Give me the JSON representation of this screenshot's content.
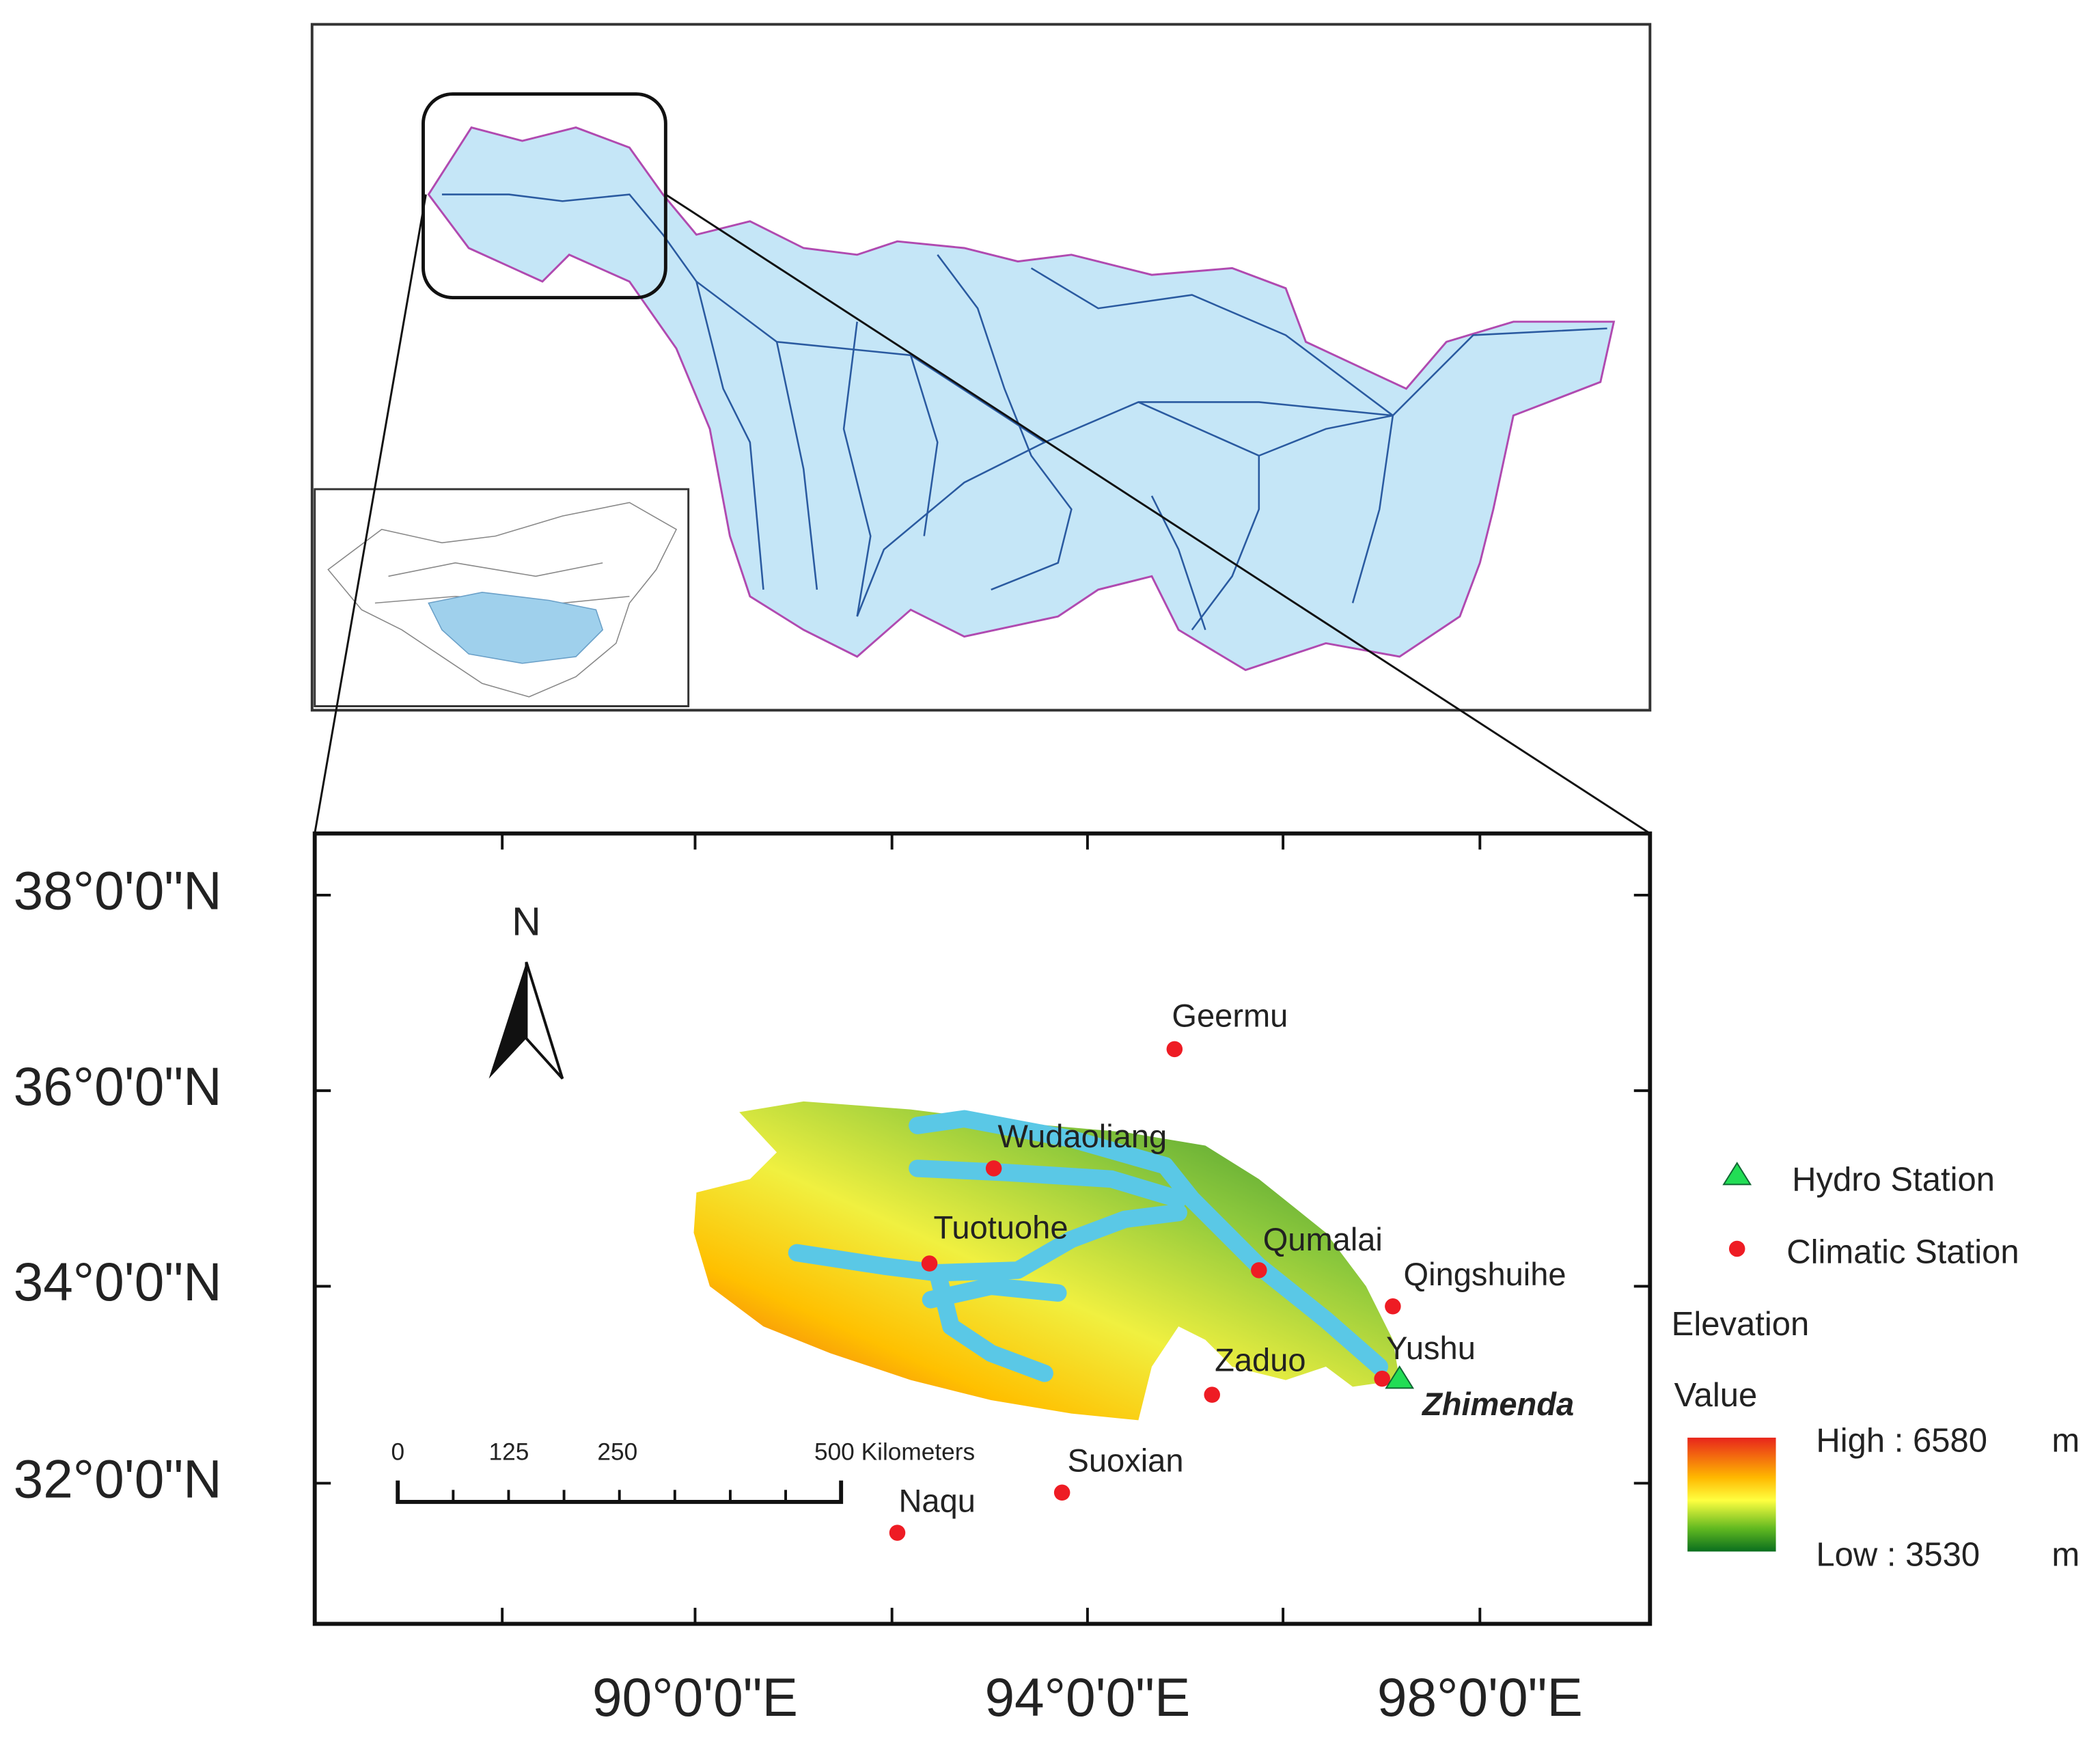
{
  "map": {
    "north": "N",
    "lat_labels": [
      "38°0'0\"N",
      "36°0'0\"N",
      "34°0'0\"N",
      "32°0'0\"N"
    ],
    "lon_labels": [
      "90°0'0\"E",
      "94°0'0\"E",
      "98°0'0\"E"
    ],
    "scale_labels": [
      "0",
      "125",
      "250",
      "500 Kilometers"
    ],
    "climatic_stations": [
      "Geermu",
      "Wudaoliang",
      "Tuotuohe",
      "Qumalai",
      "Qingshuihe",
      "Yushu",
      "Zaduo",
      "Suoxian",
      "Naqu"
    ],
    "hydro_station": "Zhimenda",
    "legend": {
      "hydro": "Hydro Station",
      "climatic": "Climatic Station",
      "elevation": "Elevation",
      "value": "Value",
      "high": "High : 6580",
      "low": "Low : 3530",
      "unit": "m"
    }
  }
}
